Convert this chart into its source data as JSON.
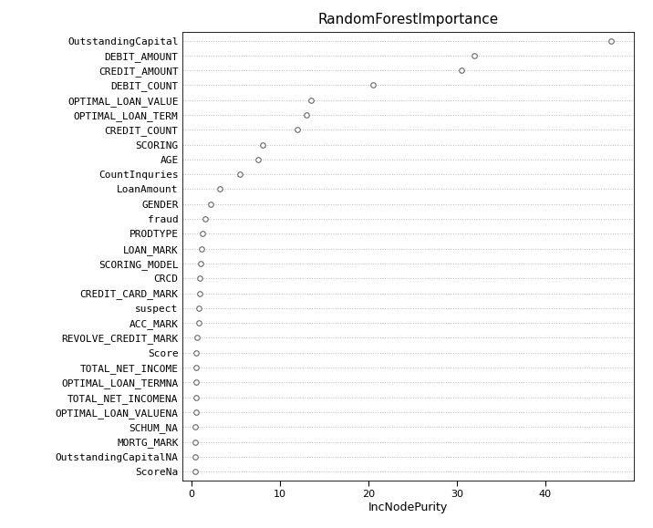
{
  "title": "RandomForestImportance",
  "xlabel": "IncNodePurity",
  "features": [
    "OutstandingCapital",
    "DEBIT_AMOUNT",
    "CREDIT_AMOUNT",
    "DEBIT_COUNT",
    "OPTIMAL_LOAN_VALUE",
    "OPTIMAL_LOAN_TERM",
    "CREDIT_COUNT",
    "SCORING",
    "AGE",
    "CountInquries",
    "LoanAmount",
    "GENDER",
    "fraud",
    "PRODTYPE",
    "LOAN_MARK",
    "SCORING_MODEL",
    "CRCD",
    "CREDIT_CARD_MARK",
    "suspect",
    "ACC_MARK",
    "REVOLVE_CREDIT_MARK",
    "Score",
    "TOTAL_NET_INCOME",
    "OPTIMAL_LOAN_TERMNA",
    "TOTAL_NET_INCOMENA",
    "OPTIMAL_LOAN_VALUENA",
    "SCHUM_NA",
    "MORTG_MARK",
    "OutstandingCapitalNA",
    "ScoreNa"
  ],
  "values": [
    47.5,
    32.0,
    30.5,
    20.5,
    13.5,
    13.0,
    12.0,
    8.0,
    7.5,
    5.5,
    3.2,
    2.2,
    1.5,
    1.2,
    1.1,
    1.0,
    0.9,
    0.9,
    0.85,
    0.85,
    0.6,
    0.55,
    0.5,
    0.5,
    0.45,
    0.45,
    0.4,
    0.4,
    0.35,
    0.35
  ],
  "xlim": [
    -1,
    50
  ],
  "xticks": [
    0,
    10,
    20,
    30,
    40
  ],
  "marker": "o",
  "marker_color": "white",
  "marker_edgecolor": "#666666",
  "marker_size": 4,
  "grid_color": "#bbbbbb",
  "bg_color": "white",
  "title_fontsize": 11,
  "label_fontsize": 9,
  "tick_fontsize": 8,
  "ytick_fontsize": 8
}
